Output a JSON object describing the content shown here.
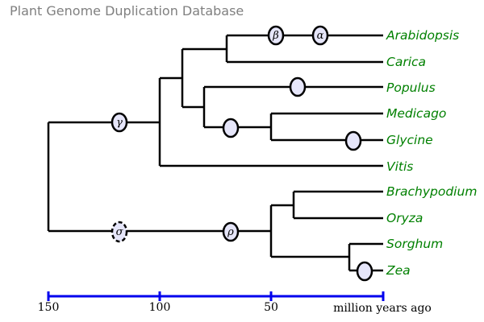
{
  "title": "Plant Genome Duplication Database",
  "taxa": [
    {
      "name": "Arabidopsis"
    },
    {
      "name": "Carica"
    },
    {
      "name": "Populus"
    },
    {
      "name": "Medicago"
    },
    {
      "name": "Glycine"
    },
    {
      "name": "Vitis"
    },
    {
      "name": "Brachypodium"
    },
    {
      "name": "Oryza"
    },
    {
      "name": "Sorghum"
    },
    {
      "name": "Zea"
    }
  ],
  "duplication_events": [
    {
      "label": "β",
      "uncertain": false
    },
    {
      "label": "α",
      "uncertain": false
    },
    {
      "label": "",
      "uncertain": false
    },
    {
      "label": "",
      "uncertain": false
    },
    {
      "label": "",
      "uncertain": false
    },
    {
      "label": "γ",
      "uncertain": false
    },
    {
      "label": "σ",
      "uncertain": true
    },
    {
      "label": "ρ",
      "uncertain": false
    },
    {
      "label": "",
      "uncertain": false
    }
  ],
  "time_axis": {
    "ticks": [
      "150",
      "100",
      "50"
    ],
    "title": "million years ago",
    "line_color": "#0000ee"
  },
  "colors": {
    "taxon_text": "#008000",
    "node_fill": "#e6e6fa",
    "title_text": "#808080"
  }
}
